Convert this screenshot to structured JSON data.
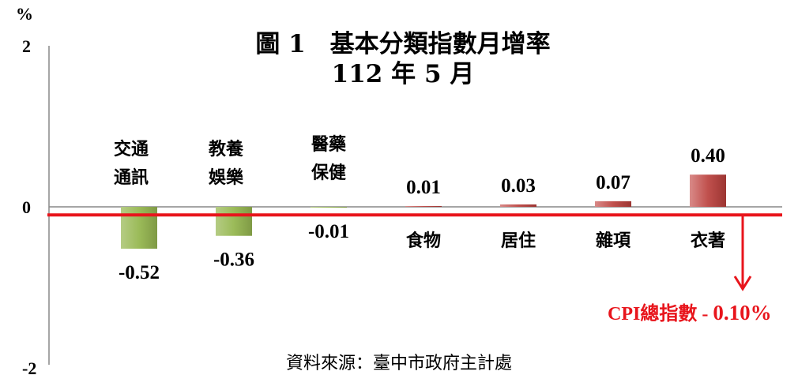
{
  "chart_data": {
    "type": "bar",
    "title": "圖 1　基本分類指數月增率",
    "subtitle": "112 年 5 月",
    "ylabel": "%",
    "ylim": [
      -2,
      2
    ],
    "yticks": [
      "2",
      "0",
      "-2"
    ],
    "categories": [
      {
        "label_lines": [
          "交通",
          "通訊"
        ]
      },
      {
        "label_lines": [
          "教養",
          "娛樂"
        ]
      },
      {
        "label_lines": [
          "醫藥",
          "保健"
        ]
      },
      {
        "label_lines": [
          "食物"
        ]
      },
      {
        "label_lines": [
          "居住"
        ]
      },
      {
        "label_lines": [
          "雜項"
        ]
      },
      {
        "label_lines": [
          "衣著"
        ]
      }
    ],
    "values": [
      -0.52,
      -0.36,
      -0.01,
      0.01,
      0.03,
      0.07,
      0.4
    ],
    "value_labels": [
      "-0.52",
      "-0.36",
      "-0.01",
      "0.01",
      "0.03",
      "0.07",
      "0.40"
    ],
    "reference_line": {
      "value": -0.1,
      "label": "CPI總指數 -",
      "value_label": "0.10%"
    },
    "colors": {
      "negative": "#9bbb59",
      "positive": "#c0504d",
      "reference": "#e8151c",
      "axis": "#888888"
    },
    "source": "資料來源：臺中市政府主計處",
    "grid": false,
    "legend": "none"
  }
}
